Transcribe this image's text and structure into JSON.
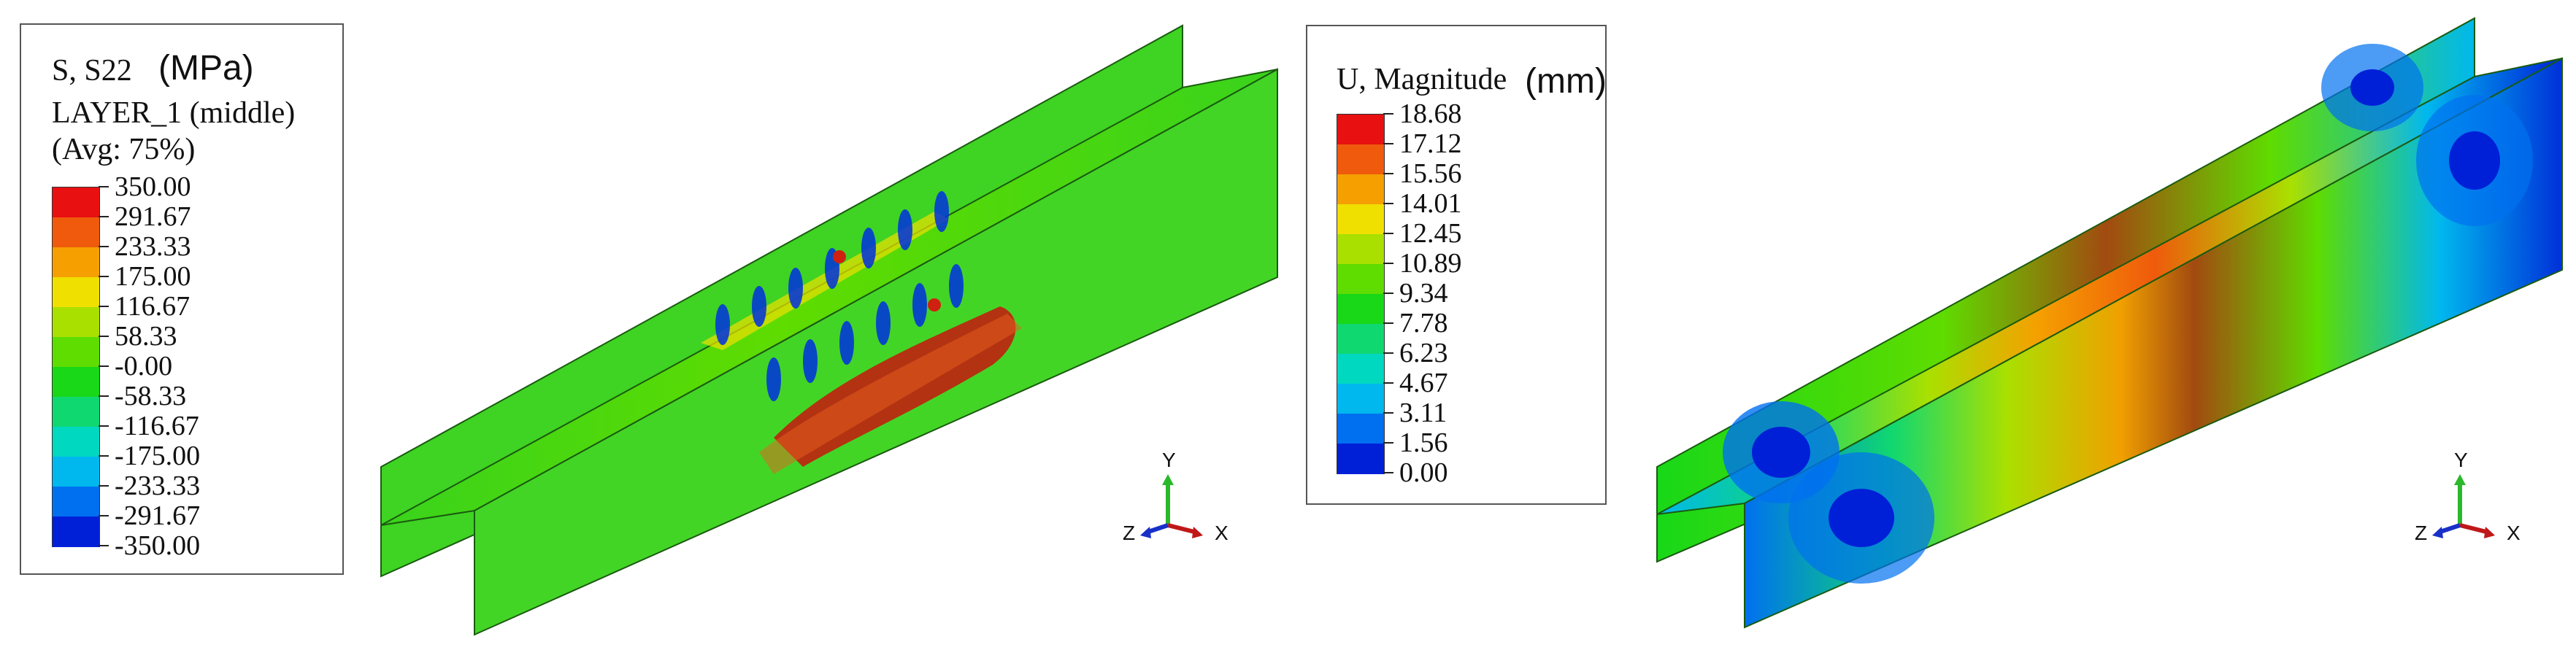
{
  "left_legend": {
    "title_var": "S, S22",
    "title_unit": "(MPa)",
    "title_layer": "LAYER_1 (middle)",
    "title_avg": "(Avg: 75%)",
    "values": [
      "350.00",
      "291.67",
      "233.33",
      "175.00",
      "116.67",
      "58.33",
      "-0.00",
      "-58.33",
      "-116.67",
      "-175.00",
      "-233.33",
      "-291.67",
      "-350.00"
    ],
    "colors": [
      "#e81010",
      "#ef5a0c",
      "#f5a000",
      "#f0e000",
      "#a9e000",
      "#5fdc00",
      "#18d818",
      "#10d870",
      "#00d8c0",
      "#00b8ee",
      "#0070f0",
      "#0020d8"
    ]
  },
  "right_legend": {
    "title_var": "U, Magnitude",
    "title_unit": "(mm)",
    "values": [
      "18.68",
      "17.12",
      "15.56",
      "14.01",
      "12.45",
      "10.89",
      "9.34",
      "7.78",
      "6.23",
      "4.67",
      "3.11",
      "1.56",
      "0.00"
    ],
    "colors": [
      "#e81010",
      "#ef5a0c",
      "#f5a000",
      "#f0e000",
      "#a9e000",
      "#5fdc00",
      "#18d818",
      "#10d870",
      "#00d8c0",
      "#00b8ee",
      "#0070f0",
      "#0020d8"
    ]
  },
  "triad": {
    "x_label": "X",
    "y_label": "Y",
    "z_label": "Z"
  }
}
